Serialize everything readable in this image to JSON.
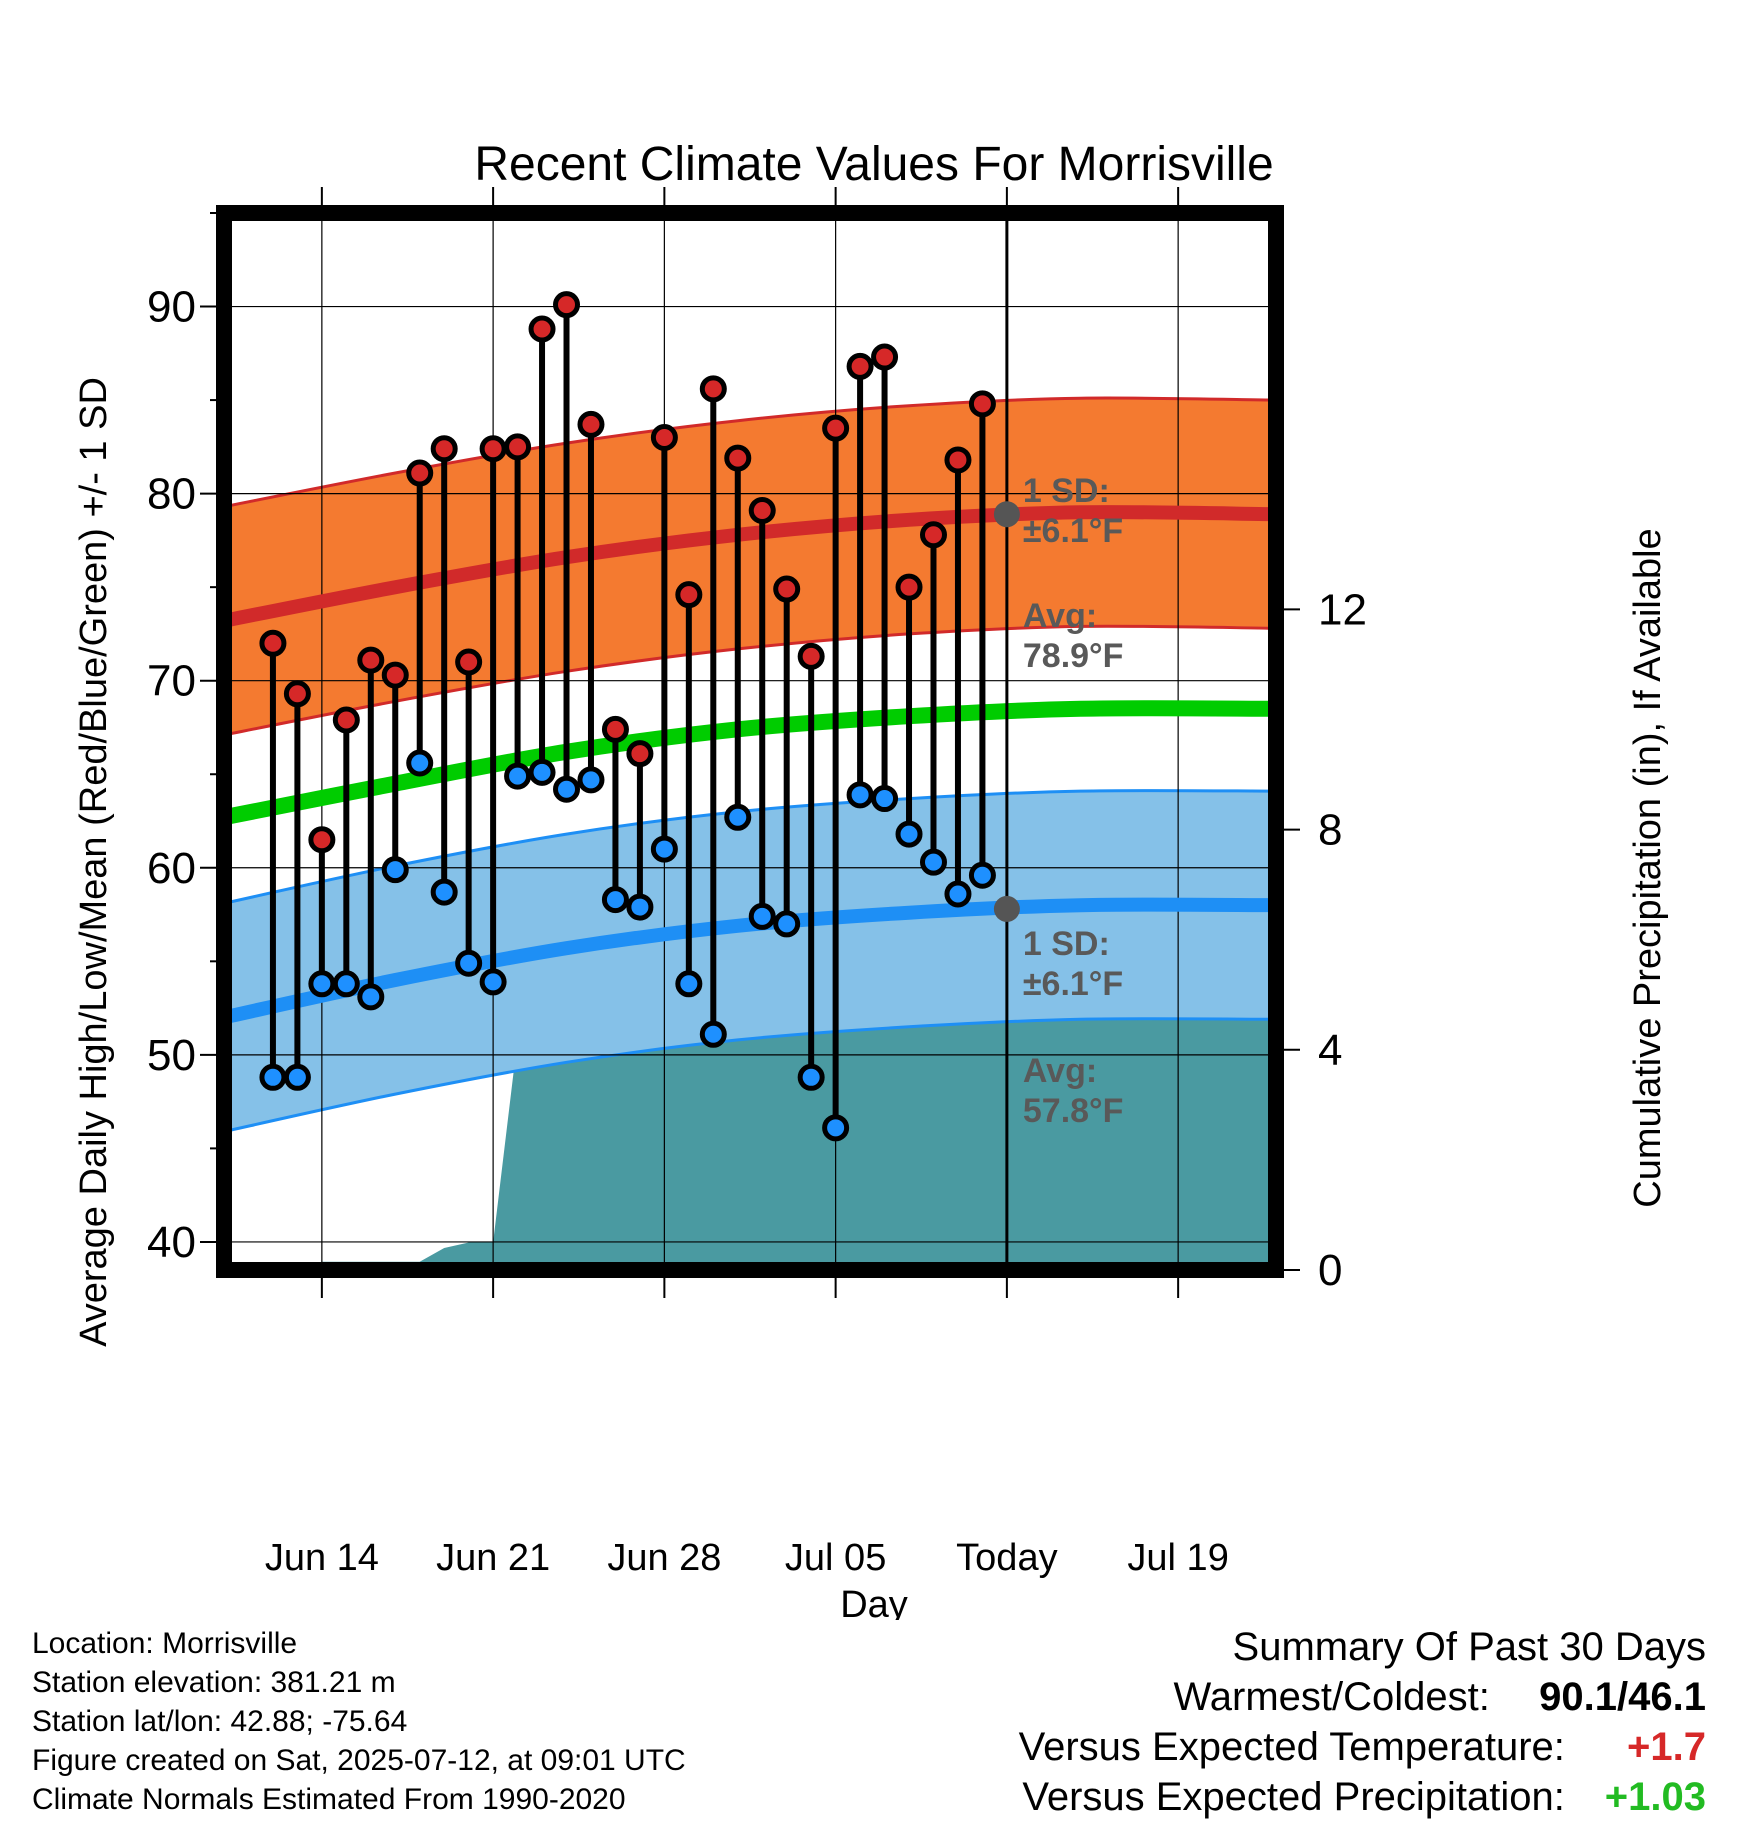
{
  "chart_data": {
    "type": "line",
    "title": "Recent Climate Values For Morrisville",
    "xlabel": "Day",
    "ylabel": "Average Daily High/Low/Mean (Red/Blue/Green) +/- 1 SD",
    "y2label": "Cumulative Precipitation (in), If Available",
    "ylim": [
      38.5,
      95
    ],
    "y2lim": [
      0,
      19.2
    ],
    "xlim": [
      "2025-06-10",
      "2025-07-23"
    ],
    "x_tick_dates": [
      "2025-06-14",
      "2025-06-21",
      "2025-06-28",
      "2025-07-05",
      "2025-07-12",
      "2025-07-19"
    ],
    "x_tick_labels": [
      "Jun 14",
      "Jun 21",
      "Jun 28",
      "Jul 05",
      "Today",
      "Jul 19"
    ],
    "y_ticks": [
      40,
      50,
      60,
      70,
      80,
      90
    ],
    "y2_ticks": [
      0,
      4,
      8,
      12
    ],
    "grid": true,
    "today": "2025-07-12",
    "today_label": "30 Days",
    "normal_dates": [
      "2025-06-10",
      "2025-06-17",
      "2025-06-24",
      "2025-07-01",
      "2025-07-08",
      "2025-07-15",
      "2025-07-23"
    ],
    "normal_high": {
      "avg": [
        73.2,
        75.0,
        76.6,
        77.8,
        78.6,
        79.0,
        78.9
      ],
      "sd": 6.1
    },
    "normal_low": {
      "avg": [
        52.0,
        54.0,
        55.7,
        56.9,
        57.6,
        58.0,
        58.0
      ],
      "sd": 6.1
    },
    "normal_mean": [
      62.7,
      64.5,
      66.2,
      67.4,
      68.1,
      68.5,
      68.5
    ],
    "daily_dates": [
      "2025-06-12",
      "2025-06-13",
      "2025-06-14",
      "2025-06-15",
      "2025-06-16",
      "2025-06-17",
      "2025-06-18",
      "2025-06-19",
      "2025-06-20",
      "2025-06-21",
      "2025-06-22",
      "2025-06-23",
      "2025-06-24",
      "2025-06-25",
      "2025-06-26",
      "2025-06-27",
      "2025-06-28",
      "2025-06-29",
      "2025-06-30",
      "2025-07-01",
      "2025-07-02",
      "2025-07-03",
      "2025-07-04",
      "2025-07-05",
      "2025-07-06",
      "2025-07-07",
      "2025-07-08",
      "2025-07-09",
      "2025-07-10",
      "2025-07-11"
    ],
    "series": [
      {
        "name": "High",
        "values": [
          72.0,
          69.3,
          61.5,
          67.9,
          71.1,
          70.3,
          81.1,
          82.4,
          71.0,
          82.4,
          82.5,
          88.8,
          90.1,
          83.7,
          67.4,
          66.1,
          83.0,
          74.6,
          85.6,
          81.9,
          79.1,
          74.9,
          71.3,
          83.5,
          86.8,
          87.3,
          75.0,
          77.8,
          81.8,
          84.8
        ]
      },
      {
        "name": "Low",
        "values": [
          48.8,
          48.8,
          53.8,
          53.8,
          53.1,
          59.9,
          65.6,
          58.7,
          54.9,
          53.9,
          64.9,
          65.1,
          64.2,
          64.7,
          58.3,
          57.9,
          61.0,
          53.8,
          51.1,
          62.7,
          57.4,
          57.0,
          48.8,
          46.1,
          63.9,
          63.7,
          61.8,
          60.3,
          58.6,
          59.6
        ]
      }
    ],
    "precip_dates": [
      "2025-06-12",
      "2025-06-13",
      "2025-06-14",
      "2025-06-15",
      "2025-06-16",
      "2025-06-17",
      "2025-06-18",
      "2025-06-19",
      "2025-06-20",
      "2025-06-21",
      "2025-06-22",
      "2025-06-23",
      "2025-06-24",
      "2025-06-25",
      "2025-06-26",
      "2025-06-27",
      "2025-06-28",
      "2025-06-29",
      "2025-06-30",
      "2025-07-01",
      "2025-07-02",
      "2025-07-03",
      "2025-07-04",
      "2025-07-05",
      "2025-07-06",
      "2025-07-07",
      "2025-07-08",
      "2025-07-09",
      "2025-07-10",
      "2025-07-11",
      "2025-07-12",
      "2025-07-23"
    ],
    "precip_cumulative": [
      0.0,
      0.0,
      0.15,
      0.15,
      0.15,
      0.15,
      0.15,
      0.4,
      0.5,
      0.5,
      4.2,
      4.2,
      4.2,
      4.2,
      4.4,
      4.4,
      4.4,
      4.4,
      4.75,
      4.95,
      4.95,
      4.95,
      4.97,
      4.97,
      4.97,
      4.97,
      5.0,
      5.0,
      5.0,
      5.0,
      5.2,
      5.2
    ],
    "annotations": {
      "high_sd": [
        "1 SD:",
        "±6.1°F"
      ],
      "high_avg": [
        "Avg:",
        "78.9°F"
      ],
      "low_sd": [
        "1 SD:",
        "±6.1°F"
      ],
      "low_avg": [
        "Avg:",
        "57.8°F"
      ]
    },
    "colors": {
      "high_band": "#f47a30",
      "high_line": "#d12a2a",
      "low_band": "#85c1e8",
      "low_line": "#1e8ff5",
      "mean_line": "#00cc00",
      "precip": "#4a9aa1",
      "high_marker": "#d62828",
      "low_marker": "#1e90ff",
      "annotation": "#595959"
    }
  },
  "info": [
    "Location: Morrisville",
    "Station elevation: 381.21 m",
    "Station lat/lon: 42.88; -75.64",
    "Figure created on Sat, 2025-07-12, at 09:01 UTC",
    "Climate Normals Estimated From 1990-2020"
  ],
  "summary": {
    "title": "Summary Of Past 30 Days",
    "warmest_label": "Warmest/Coldest:",
    "warmest_value": "90.1/46.1",
    "temp_label": "Versus Expected Temperature:",
    "temp_value": "+1.7",
    "temp_color": "#d62828",
    "precip_label": "Versus Expected Precipitation:",
    "precip_value": "+1.03",
    "precip_color": "#22bb22"
  }
}
